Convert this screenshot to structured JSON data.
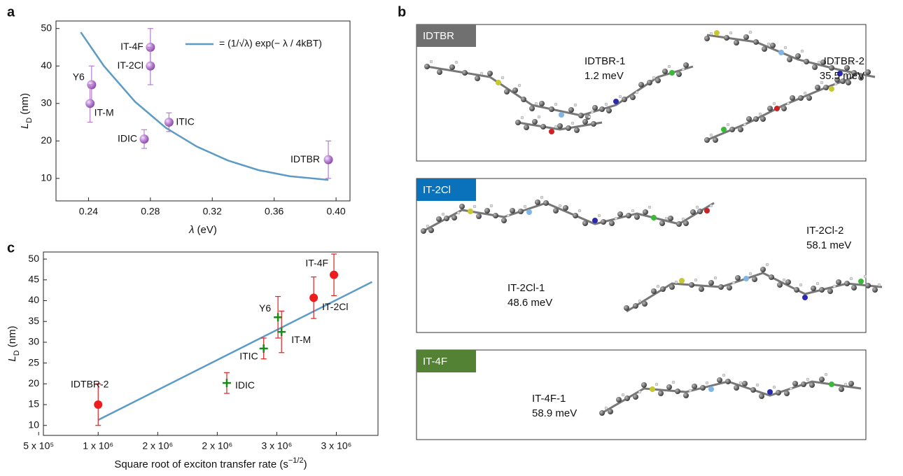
{
  "chart_data": [
    {
      "type": "scatter",
      "panel": "a",
      "xlabel": {
        "text": "λ",
        "unit": "(eV)"
      },
      "ylabel": {
        "text": "L",
        "sub": "D",
        "unit": "(nm)"
      },
      "xlim": [
        0.219,
        0.409
      ],
      "ylim": [
        4,
        52
      ],
      "xticks": [
        0.24,
        0.28,
        0.32,
        0.36,
        {
          "value": 0.4,
          "label": "0.40"
        }
      ],
      "yticks": [
        10,
        20,
        30,
        40,
        50
      ],
      "series": [
        {
          "name": "= (1/√λ) exp(− λ / 4kBT)",
          "color": "#5b9bc6",
          "marker": "line",
          "x": [
            0.235,
            0.25,
            0.27,
            0.29,
            0.31,
            0.33,
            0.35,
            0.37,
            0.395
          ],
          "values": [
            49,
            40,
            30.5,
            23.5,
            18.5,
            14.8,
            12.2,
            10.6,
            9.6
          ]
        },
        {
          "color": "#b57ed0",
          "marker": "sphere",
          "x": [
            0.242,
            0.241,
            0.28,
            0.28,
            0.292,
            0.276,
            0.395
          ],
          "values": [
            35,
            30,
            45,
            40,
            25,
            20.5,
            15
          ],
          "errors": [
            5,
            5,
            5,
            5,
            2.5,
            2.5,
            5
          ],
          "labels": [
            "Y6",
            "IT-M",
            "IT-4F",
            "IT-2Cl",
            "ITIC",
            "IDIC",
            "IDTBR"
          ]
        }
      ]
    },
    {
      "type": "scatter",
      "panel": "c",
      "xlabel": {
        "text": "Square root of exciton transfer rate (s",
        "sup": "−1/2",
        "unit": ")"
      },
      "ylabel": {
        "text": "L",
        "sub": "D",
        "unit": "(nm)"
      },
      "xlim": [
        540000,
        3350000
      ],
      "ylim": [
        7.6,
        51.7
      ],
      "xticks": [
        {
          "value": 500000,
          "label": "5 x 10⁵"
        },
        {
          "value": 1000000,
          "label": "1 x 10⁶"
        },
        {
          "value": 1500000,
          "label": "2 x 10⁶"
        },
        {
          "value": 2000000,
          "label": "2 x 10⁶"
        },
        {
          "value": 2500000,
          "label": "3 x 10⁶"
        },
        {
          "value": 3000000,
          "label": "3 x 10⁶"
        }
      ],
      "yticks": [
        10,
        15,
        20,
        25,
        30,
        35,
        40,
        45,
        50
      ],
      "series": [
        {
          "color": "#5b9bc6",
          "marker": "line",
          "x": [
            1000000,
            3300000
          ],
          "values": [
            11.3,
            44.5
          ]
        },
        {
          "color": "#ee1c1c",
          "marker": "circle",
          "error_color": "#e02020",
          "x": [
            1000000,
            2810000,
            2980000
          ],
          "values": [
            15,
            40.7,
            46.2
          ],
          "errors": [
            5,
            5,
            5
          ],
          "labels": [
            "IDTBR-2",
            "IT-2Cl",
            "IT-4F"
          ]
        },
        {
          "color": "#1a8a1a",
          "marker": "plus",
          "error_color": "#e02020",
          "x": [
            2080000,
            2390000,
            2510000,
            2540000
          ],
          "values": [
            20.2,
            28.5,
            36,
            32.5
          ],
          "errors": [
            2.5,
            2.5,
            5,
            5
          ],
          "labels": [
            "IDIC",
            "ITIC",
            "Y6",
            "IT-M"
          ]
        }
      ]
    }
  ],
  "panel_b": {
    "label": "b",
    "boxes": [
      {
        "tag": "IDTBR",
        "color": "#707070",
        "molecules": [
          {
            "name": "IDTBR-1",
            "energy": "1.2 meV"
          },
          {
            "name": "IDTBR-2",
            "energy": "35.5 meV"
          }
        ]
      },
      {
        "tag": "IT-2Cl",
        "color": "#0a72ba",
        "molecules": [
          {
            "name": "IT-2Cl-1",
            "energy": "48.6 meV"
          },
          {
            "name": "IT-2Cl-2",
            "energy": "58.1 meV"
          }
        ]
      },
      {
        "tag": "IT-4F",
        "color": "#548235",
        "molecules": [
          {
            "name": "IT-4F-1",
            "energy": "58.9 meV"
          }
        ]
      }
    ]
  }
}
